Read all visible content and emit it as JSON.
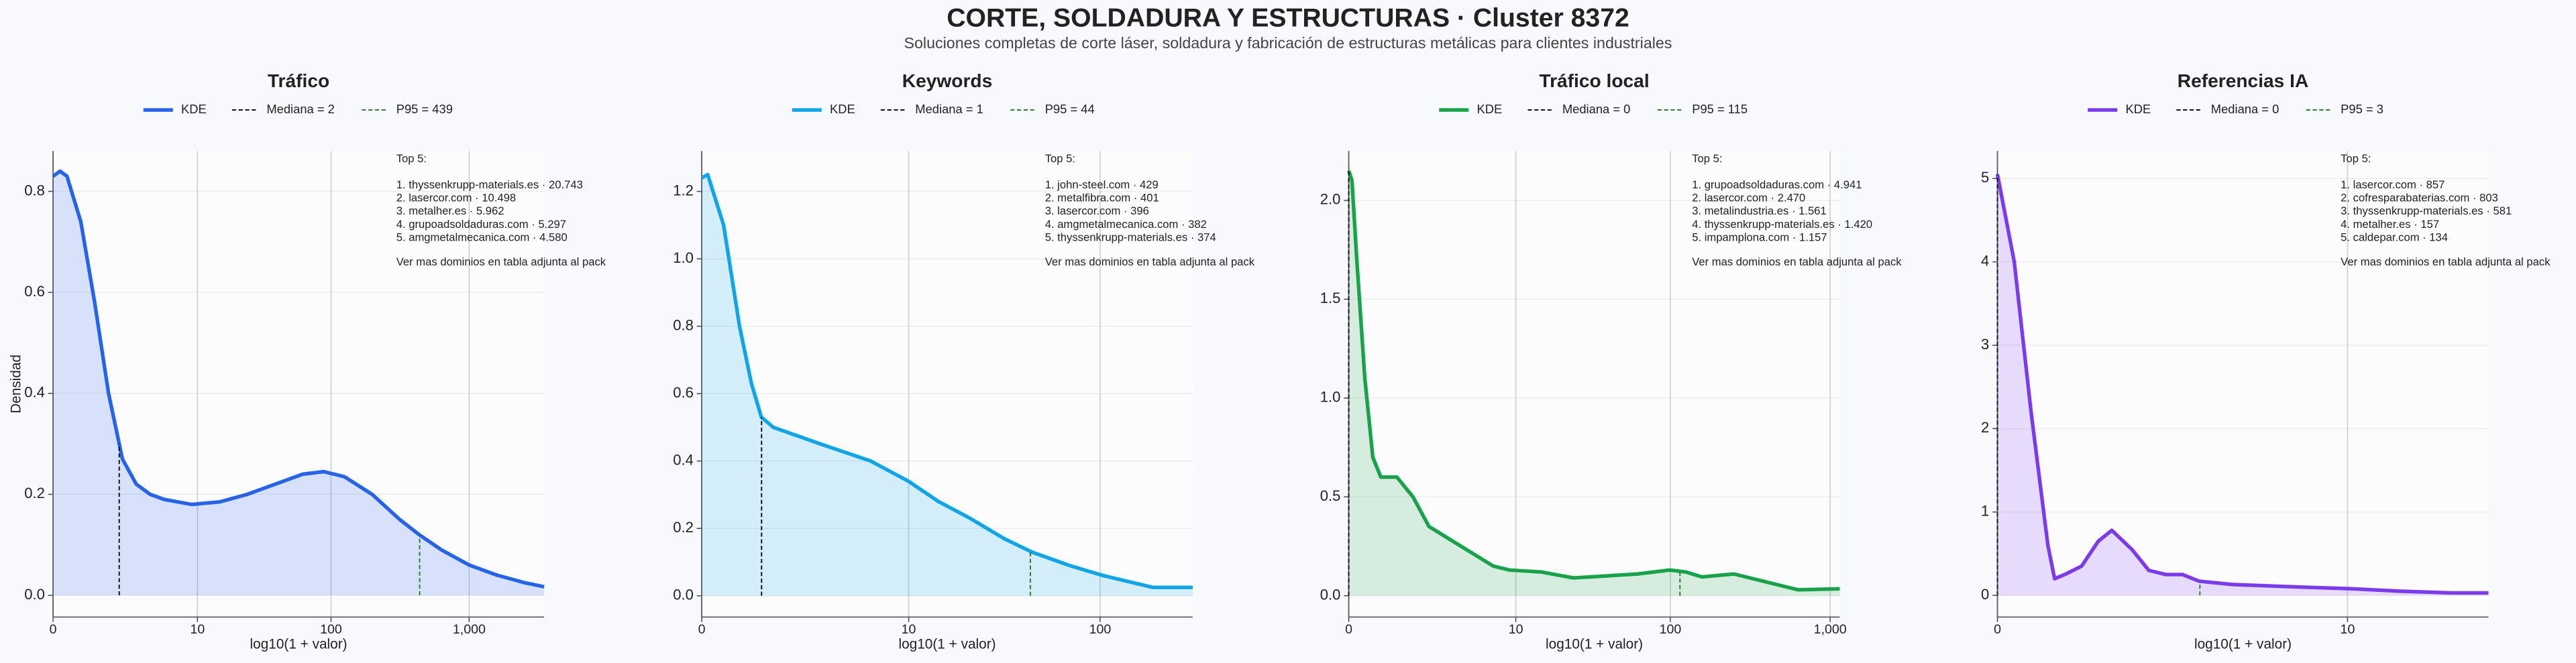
{
  "header": {
    "title": "CORTE, SOLDADURA Y ESTRUCTURAS · Cluster 8372",
    "subtitle": "Soluciones completas de corte láser, soldadura y fabricación de estructuras metálicas para clientes industriales"
  },
  "chart_data": [
    {
      "type": "line",
      "title": "Tráfico",
      "xlabel": "log10(1 + valor)",
      "ylabel": "Densidad",
      "x": [
        0,
        0.05,
        0.1,
        0.2,
        0.3,
        0.4,
        0.5,
        0.6,
        0.7,
        0.8,
        1.0,
        1.2,
        1.4,
        1.6,
        1.8,
        1.95,
        2.1,
        2.3,
        2.5,
        2.64,
        2.8,
        3.0,
        3.2,
        3.4,
        3.54
      ],
      "series": [
        {
          "name": "KDE",
          "color": "#2563eb",
          "values": [
            0.83,
            0.84,
            0.83,
            0.74,
            0.58,
            0.4,
            0.27,
            0.22,
            0.2,
            0.19,
            0.18,
            0.185,
            0.2,
            0.22,
            0.24,
            0.245,
            0.235,
            0.2,
            0.15,
            0.12,
            0.09,
            0.06,
            0.04,
            0.025,
            0.017
          ]
        }
      ],
      "vlines": [
        {
          "label": "Mediana = 2",
          "x": 0.477,
          "color": "#111111"
        },
        {
          "label": "P95 = 439",
          "x": 2.643,
          "color": "#2e7d32"
        }
      ],
      "xlim": [
        0,
        3.54
      ],
      "ylim": [
        -0.043,
        0.88
      ],
      "xticks": [
        0,
        {
          "value": 1.041,
          "label": "10"
        },
        {
          "value": 2.004,
          "label": "100"
        },
        {
          "value": 3.0,
          "label": "1,000"
        }
      ],
      "yticks": [
        {
          "value": 0,
          "label": "0.0"
        },
        0.2,
        0.4,
        0.6,
        0.8
      ],
      "grid": true,
      "annotation_title": "Top 5:",
      "annotation_items": [
        "1. thyssenkrupp-materials.es · 20.743",
        "2. lasercor.com · 10.498",
        "3. metalher.es · 5.962",
        "4. grupoadsoldaduras.com · 5.297",
        "5. amgmetalmecanica.com · 4.580"
      ],
      "annotation_note": "Ver mas dominios en tabla adjunta al pack"
    },
    {
      "type": "line",
      "title": "Keywords",
      "xlabel": "log10(1 + valor)",
      "x": [
        0,
        0.03,
        0.11,
        0.19,
        0.25,
        0.3,
        0.36,
        0.6,
        0.85,
        1.04,
        1.19,
        1.35,
        1.52,
        1.66,
        1.85,
        2.02,
        2.27,
        2.47
      ],
      "series": [
        {
          "name": "KDE",
          "color": "#0ea5e9",
          "values": [
            1.24,
            1.25,
            1.1,
            0.8,
            0.63,
            0.53,
            0.5,
            0.45,
            0.4,
            0.34,
            0.28,
            0.23,
            0.17,
            0.13,
            0.09,
            0.06,
            0.025,
            0.025
          ]
        }
      ],
      "vlines": [
        {
          "label": "Mediana = 1",
          "x": 0.301,
          "color": "#111111"
        },
        {
          "label": "P95 = 44",
          "x": 1.653,
          "color": "#2e7d32"
        }
      ],
      "xlim": [
        0,
        2.47
      ],
      "ylim": [
        -0.063,
        1.32
      ],
      "xticks": [
        0,
        {
          "value": 1.041,
          "label": "10"
        },
        {
          "value": 2.004,
          "label": "100"
        }
      ],
      "yticks": [
        {
          "value": 0,
          "label": "0.0"
        },
        0.2,
        0.4,
        0.6,
        0.8,
        {
          "value": 1,
          "label": "1.0"
        },
        1.2
      ],
      "grid": true,
      "annotation_title": "Top 5:",
      "annotation_items": [
        "1. john-steel.com · 429",
        "2. metalfibra.com · 401",
        "3. lasercor.com · 396",
        "4. amgmetalmecanica.com · 382",
        "5. thyssenkrupp-materials.es · 374"
      ],
      "annotation_note": "Ver mas dominios en tabla adjunta al pack"
    },
    {
      "type": "line",
      "title": "Tráfico local",
      "xlabel": "log10(1 + valor)",
      "x": [
        0,
        0.02,
        0.05,
        0.1,
        0.15,
        0.2,
        0.3,
        0.4,
        0.5,
        0.7,
        0.9,
        1.0,
        1.2,
        1.4,
        1.6,
        1.8,
        2.0,
        2.1,
        2.2,
        2.4,
        2.6,
        2.8,
        3.06
      ],
      "series": [
        {
          "name": "KDE",
          "color": "#16a34a",
          "values": [
            2.15,
            2.1,
            1.7,
            1.1,
            0.7,
            0.6,
            0.6,
            0.5,
            0.35,
            0.25,
            0.15,
            0.13,
            0.12,
            0.09,
            0.1,
            0.11,
            0.13,
            0.12,
            0.095,
            0.11,
            0.07,
            0.03,
            0.035
          ]
        }
      ],
      "vlines": [
        {
          "label": "Mediana = 0",
          "x": 0,
          "color": "#111111"
        },
        {
          "label": "P95 = 115",
          "x": 2.064,
          "color": "#2e7d32"
        }
      ],
      "xlim": [
        0,
        3.06
      ],
      "ylim": [
        -0.108,
        2.25
      ],
      "xticks": [
        0,
        {
          "value": 1.041,
          "label": "10"
        },
        {
          "value": 2.004,
          "label": "100"
        },
        {
          "value": 3.0,
          "label": "1,000"
        }
      ],
      "yticks": [
        {
          "value": 0,
          "label": "0.0"
        },
        0.5,
        {
          "value": 1,
          "label": "1.0"
        },
        1.5,
        {
          "value": 2,
          "label": "2.0"
        }
      ],
      "grid": true,
      "annotation_title": "Top 5:",
      "annotation_items": [
        "1. grupoadsoldaduras.com · 4.941",
        "2. lasercor.com · 2.470",
        "3. metalindustria.es · 1.561",
        "4. thyssenkrupp-materials.es · 1.420",
        "5. impamplona.com · 1.157"
      ],
      "annotation_note": "Ver mas dominios en tabla adjunta al pack"
    },
    {
      "type": "line",
      "title": "Referencias IA",
      "xlabel": "log10(1 + valor)",
      "x": [
        0,
        0.05,
        0.1,
        0.15,
        0.17,
        0.2,
        0.25,
        0.3,
        0.34,
        0.4,
        0.45,
        0.5,
        0.55,
        0.6,
        0.7,
        0.9,
        1.05,
        1.2,
        1.35,
        1.46
      ],
      "series": [
        {
          "name": "KDE",
          "color": "#7c3aed",
          "values": [
            5.05,
            4.0,
            2.2,
            0.6,
            0.2,
            0.25,
            0.35,
            0.65,
            0.78,
            0.55,
            0.3,
            0.25,
            0.25,
            0.17,
            0.13,
            0.1,
            0.08,
            0.05,
            0.03,
            0.03
          ]
        }
      ],
      "vlines": [
        {
          "label": "Mediana = 0",
          "x": 0,
          "color": "#111111"
        },
        {
          "label": "P95 = 3",
          "x": 0.602,
          "color": "#2e7d32"
        }
      ],
      "xlim": [
        0,
        1.46
      ],
      "ylim": [
        -0.26,
        5.33
      ],
      "xticks": [
        0,
        {
          "value": 1.041,
          "label": "10"
        }
      ],
      "yticks": [
        0,
        1,
        2,
        3,
        4,
        5
      ],
      "grid": true,
      "annotation_title": "Top 5:",
      "annotation_items": [
        "1. lasercor.com · 857",
        "2. cofresparabaterias.com · 803",
        "3. thyssenkrupp-materials.es · 581",
        "4. metalher.es · 157",
        "5. caldepar.com · 134"
      ],
      "annotation_note": "Ver mas dominios en tabla adjunta al pack"
    }
  ]
}
